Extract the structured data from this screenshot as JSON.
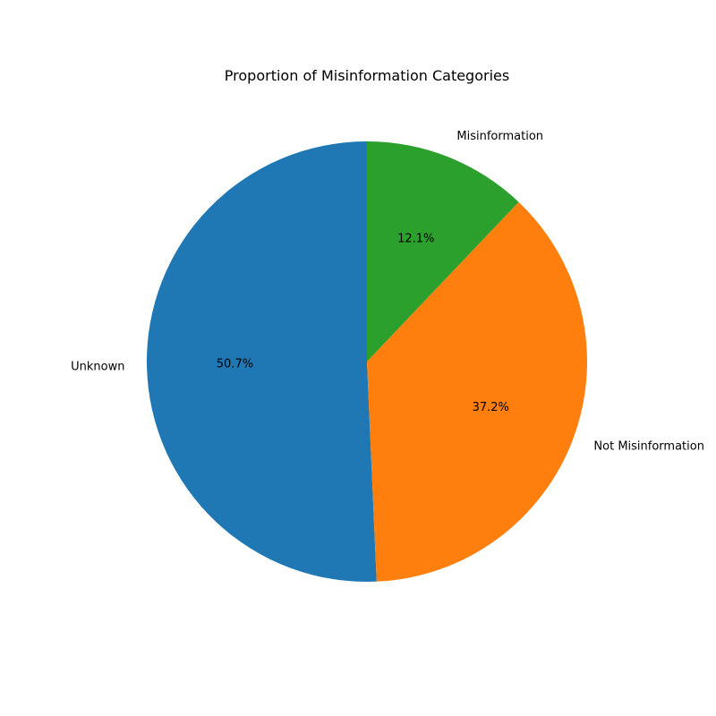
{
  "chart_data": {
    "type": "pie",
    "title": "Proportion of Misinformation Categories",
    "start_angle_deg": 90,
    "direction": "counterclockwise",
    "slices": [
      {
        "label": "Unknown",
        "value": 50.7,
        "pct_label": "50.7%",
        "color": "#1f77b4"
      },
      {
        "label": "Not Misinformation",
        "value": 37.2,
        "pct_label": "37.2%",
        "color": "#ff7f0e"
      },
      {
        "label": "Misinformation",
        "value": 12.1,
        "pct_label": "12.1%",
        "color": "#2ca02c"
      }
    ]
  }
}
